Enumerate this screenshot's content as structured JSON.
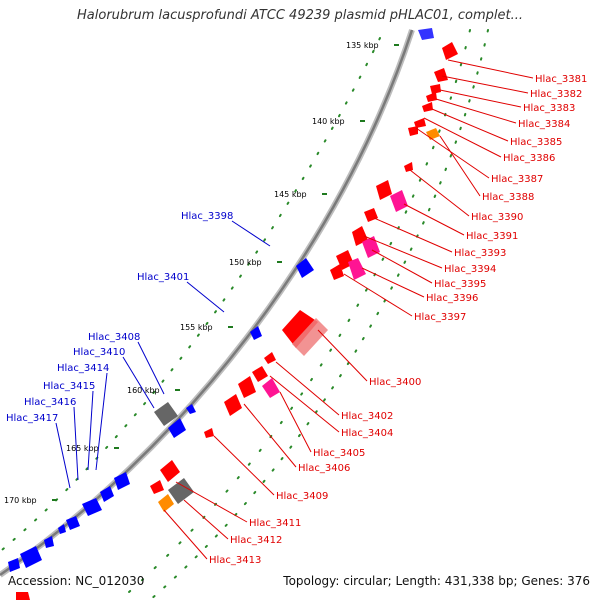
{
  "title": "Halorubrum lacusprofundi ATCC 49239 plasmid pHLAC01, complet...",
  "footer": {
    "accession": "Accession: NC_012030",
    "summary": "Topology: circular; Length: 431,338 bp; Genes: 376"
  },
  "colors": {
    "forward_gene": "#ff0000",
    "reverse_gene": "#0000ff",
    "pseudo_gene": "#ff8c00",
    "rna_gene": "#ff1493",
    "gray_feature": "#666666",
    "backbone": "#8c8c8c",
    "tick": "#1f7a1f",
    "right_label": "#e00000",
    "left_label": "#0000cc"
  },
  "ticks": [
    "135 kbp",
    "140 kbp",
    "145 kbp",
    "150 kbp",
    "155 kbp",
    "160 kbp",
    "165 kbp",
    "170 kbp"
  ],
  "labels_right": [
    "Hlac_3381",
    "Hlac_3382",
    "Hlac_3383",
    "Hlac_3384",
    "Hlac_3385",
    "Hlac_3386",
    "Hlac_3387",
    "Hlac_3388",
    "Hlac_3390",
    "Hlac_3391",
    "Hlac_3393",
    "Hlac_3394",
    "Hlac_3395",
    "Hlac_3396",
    "Hlac_3397",
    "Hlac_3400",
    "Hlac_3402",
    "Hlac_3404",
    "Hlac_3405",
    "Hlac_3406",
    "Hlac_3409",
    "Hlac_3411",
    "Hlac_3412",
    "Hlac_3413"
  ],
  "labels_left": [
    "Hlac_3398",
    "Hlac_3401",
    "Hlac_3408",
    "Hlac_3410",
    "Hlac_3414",
    "Hlac_3415",
    "Hlac_3416",
    "Hlac_3417"
  ]
}
